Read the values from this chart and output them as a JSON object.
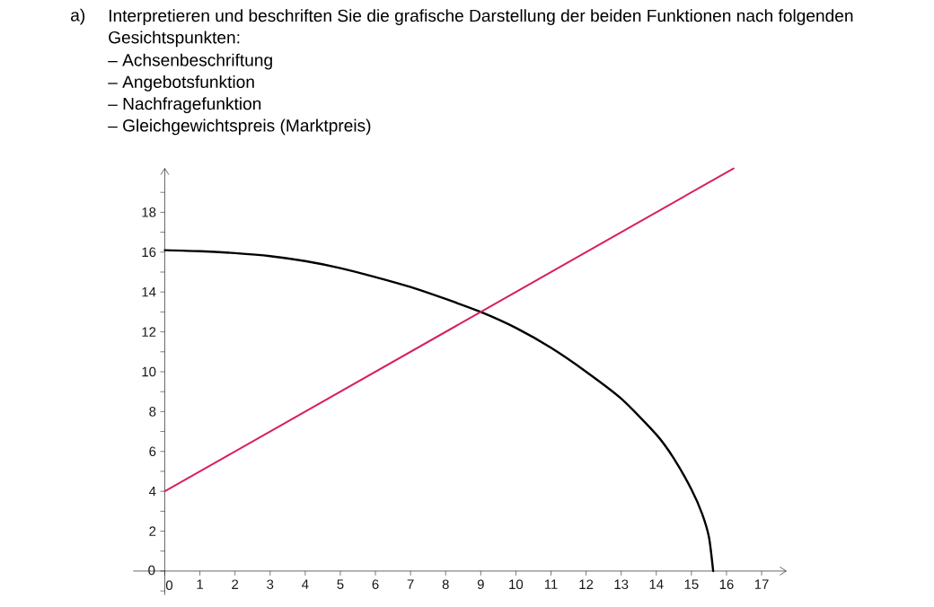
{
  "chart_data": {
    "type": "line",
    "title": "Interpretieren und beschriften Sie die grafische Darstellung der beiden Funktionen nach folgenden Gesichtspunkten:",
    "annotations": [
      "a)",
      "– Achsenbeschriftung",
      "– Angebotsfunktion",
      "– Nachfragefunktion",
      "– Gleichgewichtspreis (Marktpreis)"
    ],
    "xlim": [
      -0.9,
      17.7
    ],
    "ylim": [
      -1.2,
      20.2
    ],
    "xticks": [
      0,
      1,
      2,
      3,
      4,
      5,
      6,
      7,
      8,
      9,
      10,
      11,
      12,
      13,
      14,
      15,
      16,
      17
    ],
    "yticks": [
      {
        "value": -1,
        "label": null
      },
      0,
      {
        "value": 1,
        "label": null
      },
      2,
      {
        "value": 3,
        "label": null
      },
      4,
      {
        "value": 5,
        "label": null
      },
      6,
      {
        "value": 7,
        "label": null
      },
      8,
      {
        "value": 9,
        "label": null
      },
      10,
      {
        "value": 11,
        "label": null
      },
      12,
      {
        "value": 13,
        "label": null
      },
      14,
      {
        "value": 15,
        "label": null
      },
      16,
      {
        "value": 17,
        "label": null
      },
      18,
      {
        "value": 19,
        "label": null
      }
    ],
    "series": [
      {
        "color": "#000000",
        "x": [
          0,
          1,
          2,
          3,
          4,
          5,
          6,
          7,
          8,
          9,
          10,
          11,
          12,
          13,
          14,
          14.5,
          15,
          15.3,
          15.5,
          15.62
        ],
        "values": [
          16.1,
          16.05,
          15.95,
          15.8,
          15.55,
          15.2,
          14.75,
          14.25,
          13.65,
          13.0,
          12.2,
          11.2,
          10.0,
          8.65,
          6.85,
          5.65,
          4.1,
          2.9,
          1.7,
          0
        ]
      },
      {
        "color": "#d81e64",
        "x": [
          0,
          9,
          16.2
        ],
        "values": [
          4,
          13,
          20.2
        ]
      }
    ]
  }
}
